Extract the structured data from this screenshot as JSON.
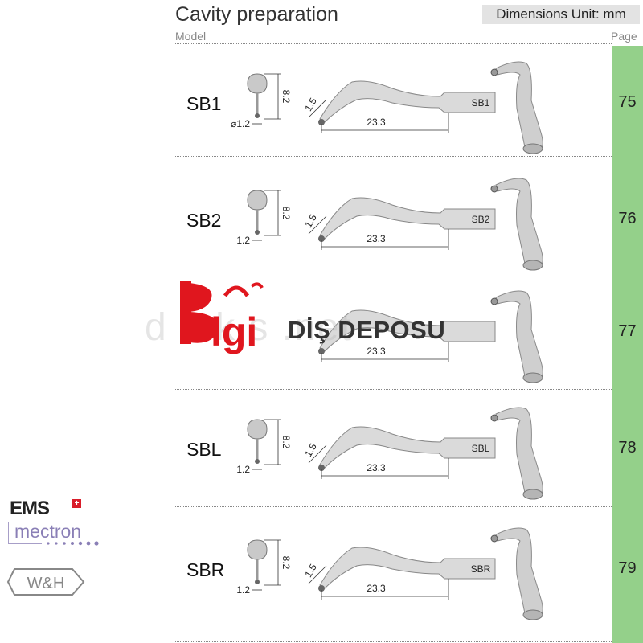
{
  "header": {
    "title": "Cavity preparation",
    "model_col": "Model",
    "units": "Dimensions Unit: mm",
    "page_col": "Page"
  },
  "rows": [
    {
      "model": "SB1",
      "page": "75",
      "tip_dia": "⌀1.2",
      "height": "8.2",
      "angle_len": "1.5",
      "length": "23.3",
      "engrave": "SB1"
    },
    {
      "model": "SB2",
      "page": "76",
      "tip_dia": "1.2",
      "height": "8.2",
      "angle_len": "1.5",
      "length": "23.3",
      "engrave": "SB2"
    },
    {
      "model": "",
      "page": "77",
      "tip_dia": "",
      "height": "",
      "angle_len": "",
      "length": "23.3",
      "engrave": ""
    },
    {
      "model": "SBL",
      "page": "78",
      "tip_dia": "1.2",
      "height": "8.2",
      "angle_len": "1.5",
      "length": "23.3",
      "engrave": "SBL"
    },
    {
      "model": "SBR",
      "page": "79",
      "tip_dia": "1.2",
      "height": "8.2",
      "angle_len": "1.5",
      "length": "23.3",
      "engrave": "SBR"
    }
  ],
  "watermark": {
    "text": "DİŞ DEPOSU",
    "logo": "Bilgi",
    "ghost": "d                  a   k   s    .net"
  },
  "logos": {
    "ems": "EMS",
    "mectron": "mectron",
    "wh": "W&H"
  },
  "colors": {
    "page_column": "#94d08a",
    "watermark_red": "#e0161e"
  }
}
